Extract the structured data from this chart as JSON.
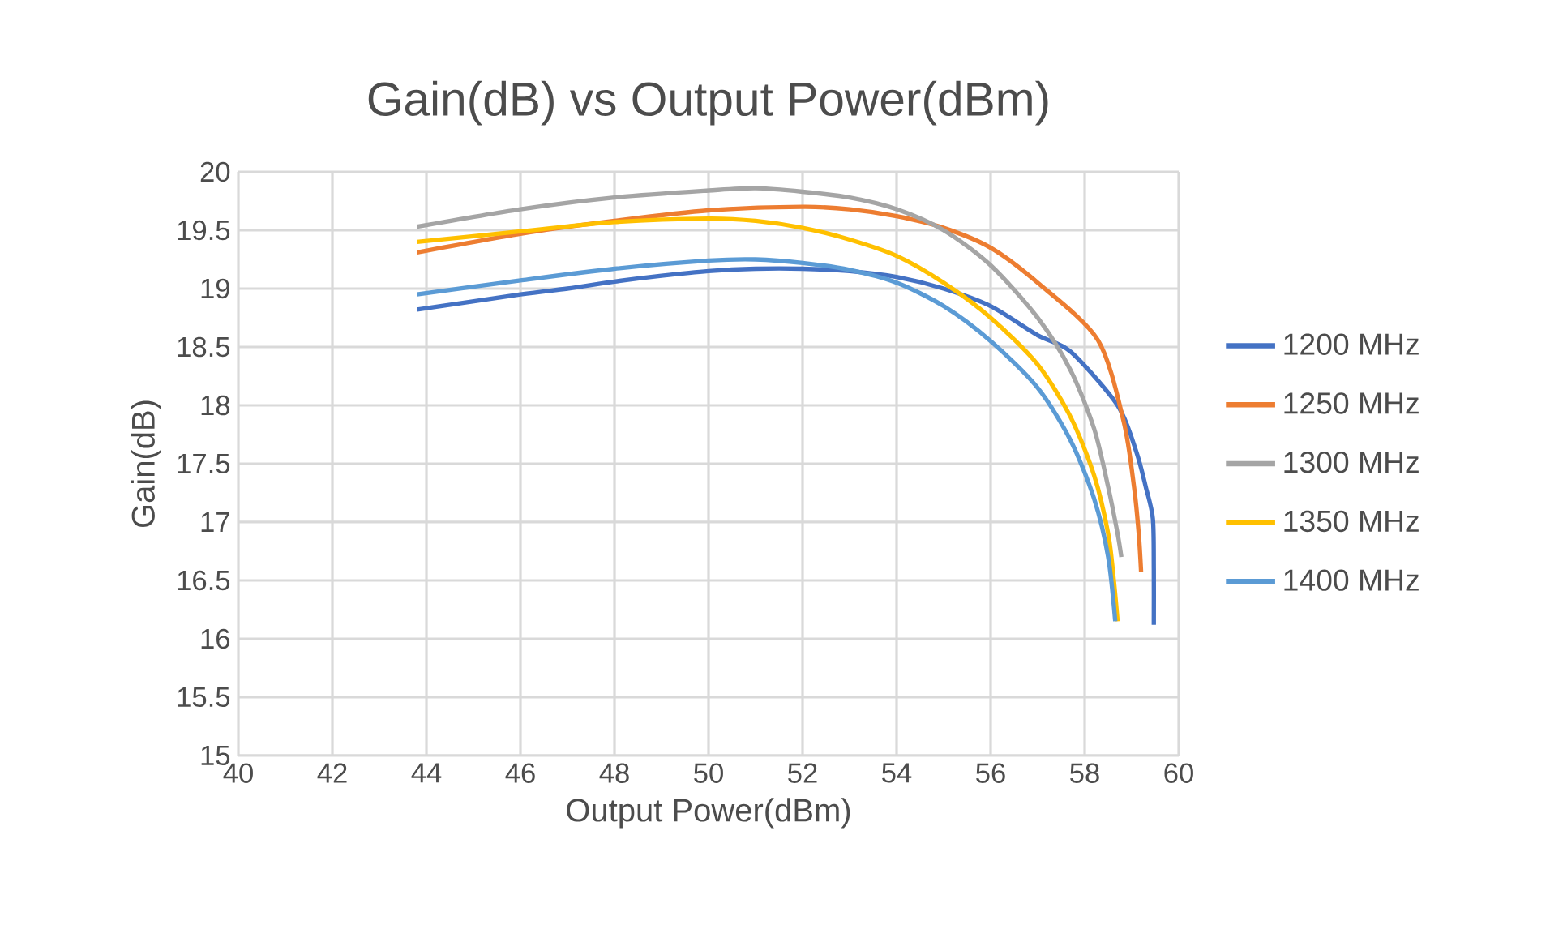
{
  "chart_data": {
    "type": "line",
    "title": "Gain(dB) vs Output Power(dBm)",
    "xlabel": "Output Power(dBm)",
    "ylabel": "Gain(dB)",
    "xlim": [
      40,
      60
    ],
    "xticks": [
      40,
      42,
      44,
      46,
      48,
      50,
      52,
      54,
      56,
      58,
      60
    ],
    "ylim": [
      15,
      20
    ],
    "yticks": [
      15,
      15.5,
      16,
      16.5,
      17,
      17.5,
      18,
      18.5,
      19,
      19.5,
      20
    ],
    "grid": true,
    "legend": "right",
    "marker": "none",
    "line_style": "solid",
    "series": [
      {
        "name": "1200 MHz",
        "color": "#4472c4",
        "x": [
          43.8,
          46,
          47,
          48,
          49,
          50,
          51,
          52,
          53,
          54,
          55,
          56,
          57,
          57.7,
          58.7,
          59.1,
          59.3,
          59.45,
          59.47,
          59.47
        ],
        "values": [
          18.82,
          18.95,
          19.0,
          19.06,
          19.11,
          19.15,
          19.17,
          19.17,
          19.15,
          19.1,
          19.0,
          18.85,
          18.6,
          18.46,
          18.0,
          17.6,
          17.3,
          17.03,
          16.6,
          16.12
        ]
      },
      {
        "name": "1250 MHz",
        "color": "#ed7d31",
        "x": [
          43.8,
          46,
          48,
          50,
          52,
          53,
          54,
          55,
          56,
          57,
          58.28,
          58.83,
          59.05,
          59.15,
          59.2
        ],
        "values": [
          19.31,
          19.47,
          19.58,
          19.67,
          19.7,
          19.68,
          19.62,
          19.52,
          19.35,
          19.05,
          18.56,
          17.86,
          17.3,
          16.9,
          16.57
        ]
      },
      {
        "name": "1300 MHz",
        "color": "#a5a5a5",
        "x": [
          43.8,
          46,
          48,
          50,
          51,
          52,
          53,
          54,
          55,
          56,
          57,
          57.7,
          58.2,
          58.5,
          58.7,
          58.78
        ],
        "values": [
          19.53,
          19.68,
          19.78,
          19.84,
          19.86,
          19.83,
          19.78,
          19.68,
          19.5,
          19.2,
          18.75,
          18.3,
          17.8,
          17.3,
          16.9,
          16.7
        ]
      },
      {
        "name": "1350 MHz",
        "color": "#ffc000",
        "x": [
          43.8,
          46,
          48,
          50,
          51,
          52,
          53,
          54,
          55,
          56,
          57,
          57.7,
          58.2,
          58.5,
          58.62,
          58.7
        ],
        "values": [
          19.4,
          19.49,
          19.57,
          19.6,
          19.58,
          19.52,
          19.42,
          19.28,
          19.05,
          18.75,
          18.35,
          17.9,
          17.4,
          16.9,
          16.5,
          16.15
        ]
      },
      {
        "name": "1400 MHz",
        "color": "#5b9bd5",
        "x": [
          43.8,
          46,
          48,
          50,
          51,
          52,
          53,
          54,
          55,
          56,
          57,
          57.7,
          58.2,
          58.5,
          58.65
        ],
        "values": [
          18.95,
          19.07,
          19.17,
          19.24,
          19.25,
          19.22,
          19.16,
          19.05,
          18.85,
          18.55,
          18.15,
          17.7,
          17.2,
          16.7,
          16.15
        ]
      }
    ]
  }
}
